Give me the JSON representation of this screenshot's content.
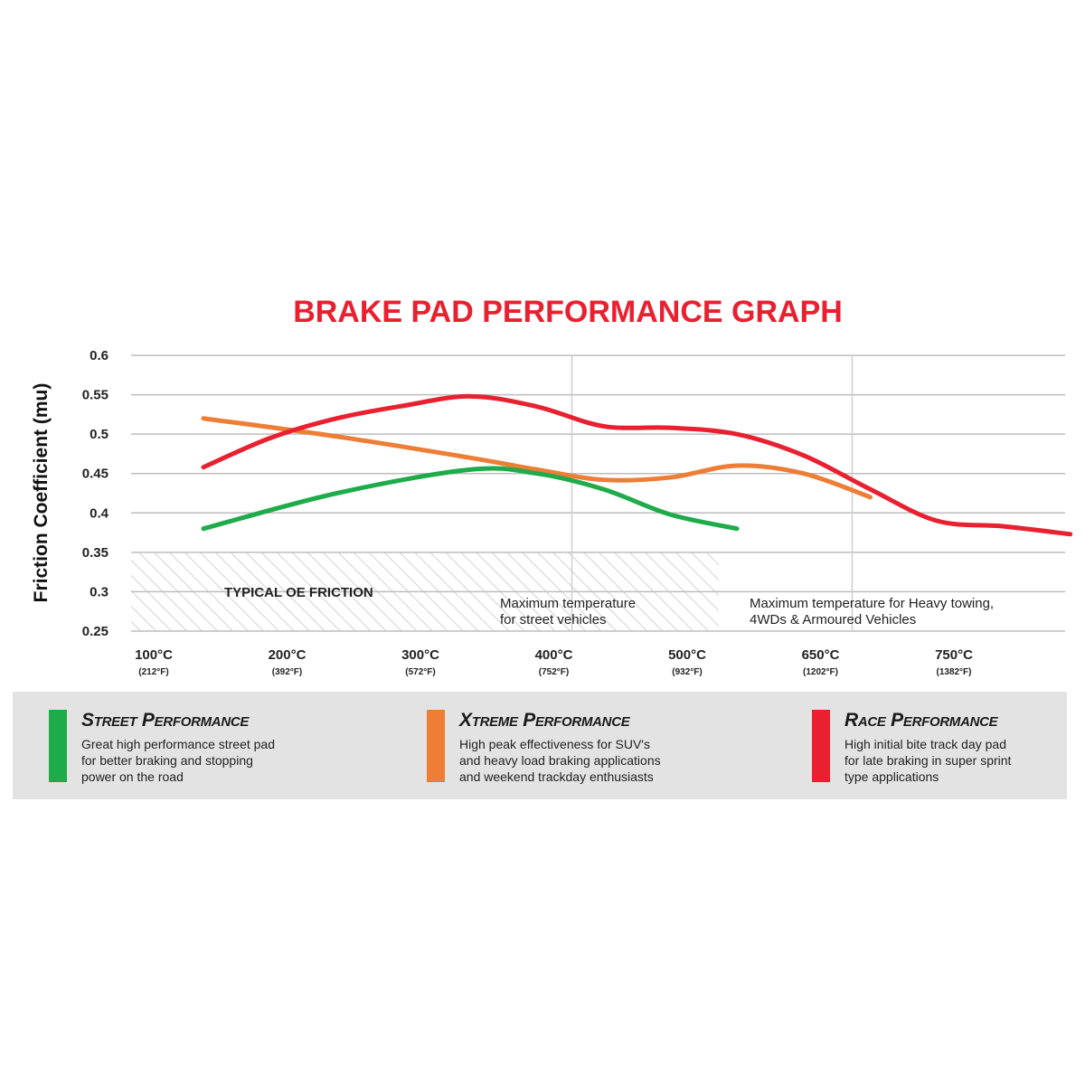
{
  "chart_data": {
    "type": "line",
    "title": "BRAKE PAD PERFORMANCE GRAPH",
    "ylabel": "Friction Coefficient (mu)",
    "xlabel": "",
    "ylim": [
      0.25,
      0.6
    ],
    "yticks": [
      "0.6",
      "0.55",
      "0.5",
      "0.45",
      "0.4",
      "0.35",
      "0.3",
      "0.25"
    ],
    "categories": [
      {
        "c": "100°C",
        "f": "(212°F)"
      },
      {
        "c": "200°C",
        "f": "(392°F)"
      },
      {
        "c": "300°C",
        "f": "(572°F)"
      },
      {
        "c": "400°C",
        "f": "(752°F)"
      },
      {
        "c": "500°C",
        "f": "(932°F)"
      },
      {
        "c": "650°C",
        "f": "(1202°F)"
      },
      {
        "c": "750°C",
        "f": "(1382°F)"
      }
    ],
    "grid": true,
    "series": [
      {
        "name": "Street Performance",
        "color": "#1eab4a",
        "x": [
          0.5,
          1.5,
          2.5,
          3,
          3.5,
          4,
          4.5
        ],
        "values": [
          0.38,
          0.425,
          0.455,
          0.45,
          0.43,
          0.398,
          0.38
        ]
      },
      {
        "name": "Xtreme Performance",
        "color": "#ee7d35",
        "x": [
          0.5,
          1.5,
          2.5,
          3,
          3.5,
          4,
          4.5,
          5,
          5.5
        ],
        "values": [
          0.52,
          0.497,
          0.47,
          0.455,
          0.442,
          0.445,
          0.46,
          0.45,
          0.42
        ]
      },
      {
        "name": "Race Performance",
        "color": "#e8202f",
        "x": [
          0.5,
          1,
          1.5,
          2,
          2.5,
          3,
          3.5,
          4,
          4.5,
          5,
          5.5,
          6,
          6.5,
          7
        ],
        "values": [
          0.458,
          0.495,
          0.52,
          0.536,
          0.548,
          0.535,
          0.51,
          0.508,
          0.5,
          0.473,
          0.43,
          0.39,
          0.383,
          0.373
        ]
      }
    ],
    "regions": [
      {
        "label": "TYPICAL OE FRICTION",
        "y_from": 0.25,
        "y_to": 0.35
      },
      {
        "label_lines": [
          "Maximum temperature",
          "for street vehicles"
        ],
        "x_boundary": 3
      },
      {
        "label_lines": [
          "Maximum temperature for Heavy towing,",
          "4WDs & Armoured Vehicles"
        ],
        "x_boundary": 5
      }
    ]
  },
  "legend": [
    {
      "title": "Street Performance",
      "color": "#1eab4a",
      "lines": [
        "Great high performance street pad",
        "for better braking and stopping",
        "power on the road"
      ]
    },
    {
      "title": "Xtreme Performance",
      "color": "#ee7d35",
      "lines": [
        "High peak effectiveness for SUV's",
        "and heavy load braking applications",
        "and weekend trackday enthusiasts"
      ]
    },
    {
      "title": "Race Performance",
      "color": "#e8202f",
      "lines": [
        "High initial bite track day pad",
        "for late braking in super sprint",
        "type applications"
      ]
    }
  ],
  "colors": {
    "title": "#e8202f",
    "grid": "#bdbdbd",
    "legend_bg": "#e3e3e3"
  }
}
